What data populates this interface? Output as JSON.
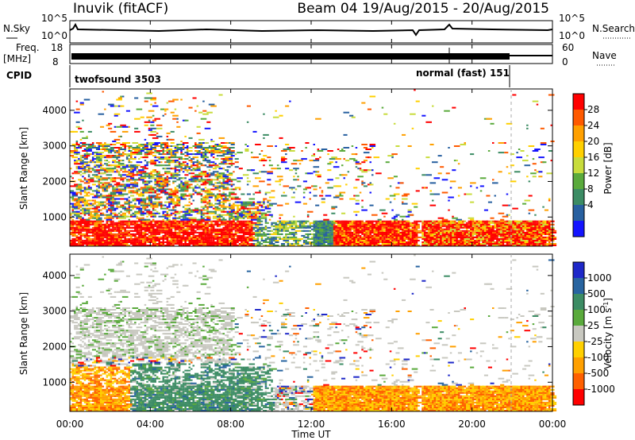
{
  "header": {
    "station": "Inuvik (fitACF)",
    "beam_date": "Beam 04 19/Aug/2015 - 20/Aug/2015"
  },
  "panels": {
    "nsky": {
      "label": "N.Sky",
      "right_label": "N.Search",
      "left_ticks": [
        "10^5",
        "10^0"
      ],
      "right_ticks": [
        "10^5",
        "10^0"
      ]
    },
    "freq": {
      "label_top": "Freq.",
      "label_unit": "[MHz]",
      "right_label": "Nave",
      "left_ticks": [
        "18",
        "8"
      ],
      "right_ticks": [
        "60",
        "0"
      ]
    },
    "cpid": {
      "label": "CPID",
      "modes": [
        "twofsound 3503",
        "normal (fast) 151"
      ]
    }
  },
  "chart_data": [
    {
      "type": "heatmap",
      "name": "power",
      "ylabel": "Slant Range [km]",
      "xlabel": "",
      "x_ticks": [
        "00:00",
        "04:00",
        "08:00",
        "12:00",
        "16:00",
        "20:00",
        "00:00"
      ],
      "x_range_hours": [
        0,
        24
      ],
      "y_ticks": [
        1000,
        2000,
        3000,
        4000
      ],
      "y_range_km": [
        180,
        4600
      ],
      "colorbar": {
        "label": "Power [dB]",
        "ticks": [
          "28",
          "24",
          "20",
          "16",
          "12",
          "8",
          "4"
        ],
        "colors": [
          "#ff0000",
          "#ff5a00",
          "#ffa000",
          "#ffd000",
          "#c8dc3c",
          "#5aaa3c",
          "#3c8c64",
          "#2860a0",
          "#1414ff"
        ]
      },
      "series": [
        {
          "x": [
            0,
            9
          ],
          "y": [
            300,
            800
          ],
          "value": 28
        },
        {
          "x": [
            9,
            12
          ],
          "y": [
            250,
            1300
          ],
          "value": 16
        },
        {
          "x": [
            12,
            13
          ],
          "y": [
            250,
            600
          ],
          "value": 12
        },
        {
          "x": [
            13,
            15
          ],
          "y": [
            250,
            850
          ],
          "value": 22
        },
        {
          "x": [
            15,
            17.3
          ],
          "y": [
            250,
            700
          ],
          "value": 28
        },
        {
          "x": [
            17.5,
            24
          ],
          "y": [
            250,
            850
          ],
          "value": 26
        },
        {
          "x": [
            0,
            8
          ],
          "y": [
            1500,
            3000
          ],
          "value": 20
        }
      ]
    },
    {
      "type": "heatmap",
      "name": "velocity",
      "ylabel": "Slant Range [km]",
      "xlabel": "Time UT",
      "x_ticks": [
        "00:00",
        "04:00",
        "08:00",
        "12:00",
        "16:00",
        "20:00",
        "00:00"
      ],
      "x_range_hours": [
        0,
        24
      ],
      "y_ticks": [
        1000,
        2000,
        3000,
        4000
      ],
      "y_range_km": [
        180,
        4600
      ],
      "colorbar": {
        "label": "Velocity [m s^-1]",
        "ticks": [
          "1000",
          "500",
          "100",
          "25",
          "-25",
          "-100",
          "-500",
          "-1000"
        ],
        "colors": [
          "#1e28c8",
          "#2864a0",
          "#3c8c64",
          "#5aaa3c",
          "#c8c8c0",
          "#ffd000",
          "#ffa000",
          "#ff6000",
          "#ff0000"
        ]
      },
      "series": [
        {
          "x": [
            0,
            3
          ],
          "y": [
            300,
            1300
          ],
          "value": -200
        },
        {
          "x": [
            3,
            10
          ],
          "y": [
            300,
            1500
          ],
          "value": 150
        },
        {
          "x": [
            0,
            8
          ],
          "y": [
            1800,
            3000
          ],
          "value": 0
        },
        {
          "x": [
            12,
            24
          ],
          "y": [
            250,
            850
          ],
          "value": -150
        }
      ]
    }
  ]
}
